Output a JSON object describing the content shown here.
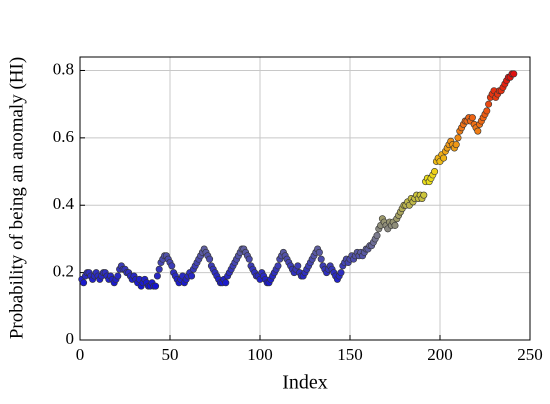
{
  "chart_data": {
    "type": "scatter",
    "xlabel": "Index",
    "ylabel": "Probability of being an anomaly (HI)",
    "xlim": [
      0,
      250
    ],
    "ylim": [
      0,
      0.84
    ],
    "xticks": [
      0,
      50,
      100,
      150,
      200,
      250
    ],
    "yticks": [
      0,
      0.2,
      0.4,
      0.6,
      0.8
    ],
    "grid": true,
    "colormap": [
      "#1414d2",
      "#80808a",
      "#ece018",
      "#f07414",
      "#e01010"
    ],
    "x": [
      1,
      2,
      3,
      4,
      5,
      6,
      7,
      8,
      9,
      10,
      11,
      12,
      13,
      14,
      15,
      16,
      17,
      18,
      19,
      20,
      21,
      22,
      23,
      24,
      25,
      26,
      27,
      28,
      29,
      30,
      31,
      32,
      33,
      34,
      35,
      36,
      37,
      38,
      39,
      40,
      41,
      42,
      43,
      44,
      45,
      46,
      47,
      48,
      49,
      50,
      51,
      52,
      53,
      54,
      55,
      56,
      57,
      58,
      59,
      60,
      61,
      62,
      63,
      64,
      65,
      66,
      67,
      68,
      69,
      70,
      71,
      72,
      73,
      74,
      75,
      76,
      77,
      78,
      79,
      80,
      81,
      82,
      83,
      84,
      85,
      86,
      87,
      88,
      89,
      90,
      91,
      92,
      93,
      94,
      95,
      96,
      97,
      98,
      99,
      100,
      101,
      102,
      103,
      104,
      105,
      106,
      107,
      108,
      109,
      110,
      111,
      112,
      113,
      114,
      115,
      116,
      117,
      118,
      119,
      120,
      121,
      122,
      123,
      124,
      125,
      126,
      127,
      128,
      129,
      130,
      131,
      132,
      133,
      134,
      135,
      136,
      137,
      138,
      139,
      140,
      141,
      142,
      143,
      144,
      145,
      146,
      147,
      148,
      149,
      150,
      151,
      152,
      153,
      154,
      155,
      156,
      157,
      158,
      159,
      160,
      161,
      162,
      163,
      164,
      165,
      166,
      167,
      168,
      169,
      170,
      171,
      172,
      173,
      174,
      175,
      176,
      177,
      178,
      179,
      180,
      181,
      182,
      183,
      184,
      185,
      186,
      187,
      188,
      189,
      190,
      191,
      192,
      193,
      194,
      195,
      196,
      197,
      198,
      199,
      200,
      201,
      202,
      203,
      204,
      205,
      206,
      207,
      208,
      209,
      210,
      211,
      212,
      213,
      214,
      215,
      216,
      217,
      218,
      219,
      220,
      221,
      222,
      223,
      224,
      225,
      226,
      227,
      228,
      229,
      230,
      231,
      232,
      233,
      234,
      235,
      236,
      237,
      238,
      239,
      240,
      241
    ],
    "values": [
      0.18,
      0.17,
      0.19,
      0.2,
      0.2,
      0.19,
      0.18,
      0.19,
      0.2,
      0.19,
      0.18,
      0.19,
      0.2,
      0.2,
      0.19,
      0.18,
      0.19,
      0.18,
      0.17,
      0.18,
      0.19,
      0.21,
      0.22,
      0.21,
      0.21,
      0.2,
      0.2,
      0.19,
      0.18,
      0.19,
      0.18,
      0.17,
      0.18,
      0.16,
      0.17,
      0.18,
      0.17,
      0.16,
      0.16,
      0.17,
      0.16,
      0.16,
      0.19,
      0.21,
      0.23,
      0.24,
      0.25,
      0.25,
      0.24,
      0.23,
      0.22,
      0.2,
      0.19,
      0.18,
      0.17,
      0.18,
      0.19,
      0.17,
      0.18,
      0.19,
      0.2,
      0.19,
      0.21,
      0.22,
      0.23,
      0.24,
      0.25,
      0.26,
      0.27,
      0.26,
      0.25,
      0.24,
      0.22,
      0.21,
      0.2,
      0.19,
      0.18,
      0.17,
      0.17,
      0.18,
      0.17,
      0.19,
      0.2,
      0.21,
      0.22,
      0.23,
      0.24,
      0.25,
      0.26,
      0.27,
      0.27,
      0.26,
      0.25,
      0.24,
      0.22,
      0.21,
      0.2,
      0.19,
      0.19,
      0.18,
      0.2,
      0.19,
      0.18,
      0.17,
      0.17,
      0.18,
      0.19,
      0.2,
      0.21,
      0.22,
      0.24,
      0.25,
      0.26,
      0.25,
      0.24,
      0.23,
      0.22,
      0.21,
      0.2,
      0.21,
      0.22,
      0.2,
      0.19,
      0.19,
      0.2,
      0.21,
      0.22,
      0.23,
      0.24,
      0.25,
      0.26,
      0.27,
      0.26,
      0.24,
      0.22,
      0.21,
      0.2,
      0.21,
      0.22,
      0.21,
      0.2,
      0.19,
      0.18,
      0.19,
      0.2,
      0.22,
      0.23,
      0.24,
      0.23,
      0.24,
      0.25,
      0.24,
      0.25,
      0.26,
      0.25,
      0.26,
      0.25,
      0.26,
      0.27,
      0.27,
      0.28,
      0.28,
      0.29,
      0.3,
      0.31,
      0.33,
      0.34,
      0.36,
      0.35,
      0.34,
      0.33,
      0.35,
      0.34,
      0.35,
      0.34,
      0.36,
      0.37,
      0.38,
      0.39,
      0.4,
      0.4,
      0.41,
      0.4,
      0.42,
      0.41,
      0.42,
      0.43,
      0.42,
      0.43,
      0.42,
      0.43,
      0.47,
      0.48,
      0.47,
      0.48,
      0.49,
      0.5,
      0.53,
      0.54,
      0.53,
      0.55,
      0.54,
      0.56,
      0.57,
      0.58,
      0.59,
      0.58,
      0.57,
      0.58,
      0.6,
      0.62,
      0.63,
      0.64,
      0.65,
      0.65,
      0.66,
      0.65,
      0.66,
      0.64,
      0.63,
      0.62,
      0.64,
      0.65,
      0.66,
      0.67,
      0.68,
      0.7,
      0.72,
      0.73,
      0.74,
      0.72,
      0.73,
      0.74,
      0.74,
      0.75,
      0.76,
      0.77,
      0.78,
      0.78,
      0.79,
      0.79
    ]
  }
}
